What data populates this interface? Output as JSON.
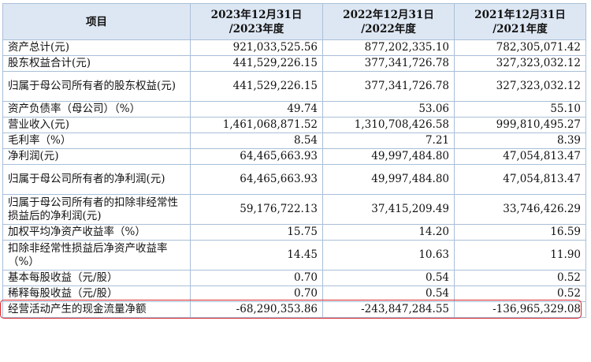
{
  "header": {
    "item": "项目",
    "col1_line1": "2023年12月31日",
    "col1_line2": "/2023年度",
    "col2_line1": "2022年12月31日",
    "col2_line2": "/2022年度",
    "col3_line1": "2021年12月31日",
    "col3_line2": "/2021年度"
  },
  "rows": [
    {
      "label": "资产总计(元)",
      "v2023": "921,033,525.56",
      "v2022": "877,202,335.10",
      "v2021": "782,305,071.42"
    },
    {
      "label": "股东权益合计(元)",
      "v2023": "441,529,226.15",
      "v2022": "377,341,726.78",
      "v2021": "327,323,032.12"
    },
    {
      "label": "归属于母公司所有者的股东权益(元)",
      "v2023": "441,529,226.15",
      "v2022": "377,341,726.78",
      "v2021": "327,323,032.12"
    },
    {
      "label": "资产负债率（母公司）（%）",
      "v2023": "49.74",
      "v2022": "53.06",
      "v2021": "55.10"
    },
    {
      "label": "营业收入(元)",
      "v2023": "1,461,068,871.52",
      "v2022": "1,310,708,426.58",
      "v2021": "999,810,495.27"
    },
    {
      "label": "毛利率（%）",
      "v2023": "8.54",
      "v2022": "7.21",
      "v2021": "8.39"
    },
    {
      "label": "净利润(元)",
      "v2023": "64,465,663.93",
      "v2022": "49,997,484.80",
      "v2021": "47,054,813.47"
    },
    {
      "label": "归属于母公司所有者的净利润(元)",
      "v2023": "64,465,663.93",
      "v2022": "49,997,484.80",
      "v2021": "47,054,813.47"
    },
    {
      "label": "归属于母公司所有者的扣除非经常性损益后的净利润(元)",
      "v2023": "59,176,722.13",
      "v2022": "37,415,209.49",
      "v2021": "33,746,426.29"
    },
    {
      "label": "加权平均净资产收益率（%）",
      "v2023": "15.75",
      "v2022": "14.20",
      "v2021": "16.59"
    },
    {
      "label": "扣除非经常性损益后净资产收益率（%）",
      "v2023": "14.45",
      "v2022": "10.63",
      "v2021": "11.90"
    },
    {
      "label": "基本每股收益（元/股）",
      "v2023": "0.70",
      "v2022": "0.54",
      "v2021": "0.52"
    },
    {
      "label": "稀释每股收益（元/股）",
      "v2023": "0.70",
      "v2022": "0.54",
      "v2021": "0.52"
    },
    {
      "label": "经营活动产生的现金流量净额",
      "v2023": "-68,290,353.86",
      "v2022": "-243,847,284.55",
      "v2021": "-136,965,329.08"
    }
  ],
  "highlight_color": "#d9262a",
  "header_bg": "#dde7f3",
  "border_color": "#a9bfd8"
}
